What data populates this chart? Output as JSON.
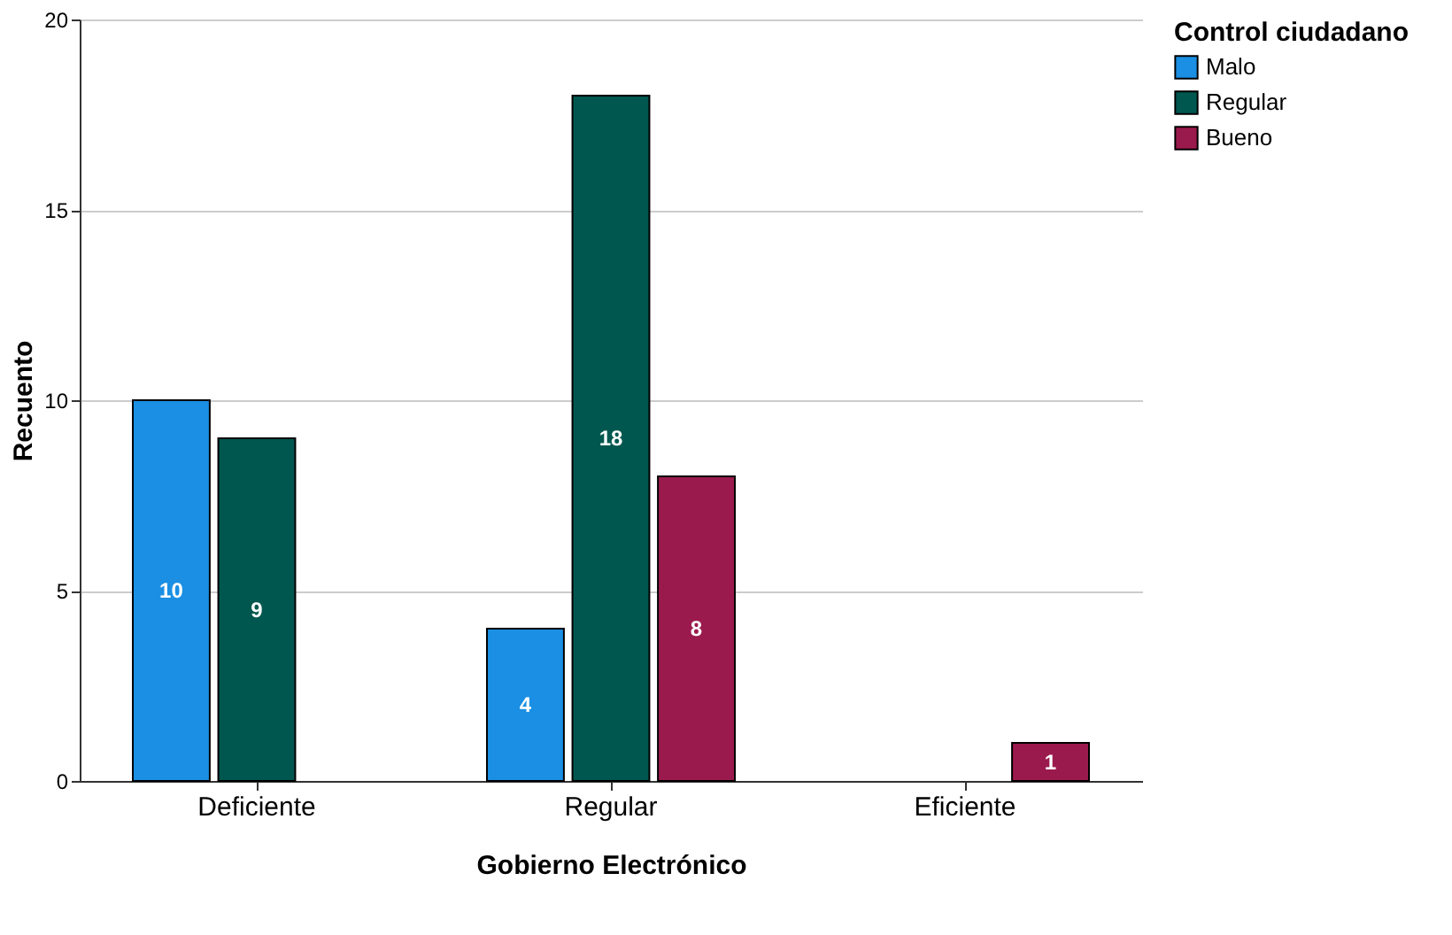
{
  "chart_data": {
    "type": "bar",
    "xlabel": "Gobierno Electrónico",
    "ylabel": "Recuento",
    "legend_title": "Control ciudadano",
    "categories": [
      "Deficiente",
      "Regular",
      "Eficiente"
    ],
    "series": [
      {
        "name": "Malo",
        "color": "#1a8fe3",
        "values": [
          10,
          4,
          null
        ]
      },
      {
        "name": "Regular",
        "color": "#00574f",
        "values": [
          9,
          18,
          null
        ]
      },
      {
        "name": "Bueno",
        "color": "#9b1a4d",
        "values": [
          null,
          8,
          1
        ]
      }
    ],
    "ylim": [
      0,
      20
    ],
    "yticks": [
      0,
      5,
      10,
      15,
      20
    ],
    "grid": "y",
    "legend": "top right",
    "data_labels": true
  }
}
